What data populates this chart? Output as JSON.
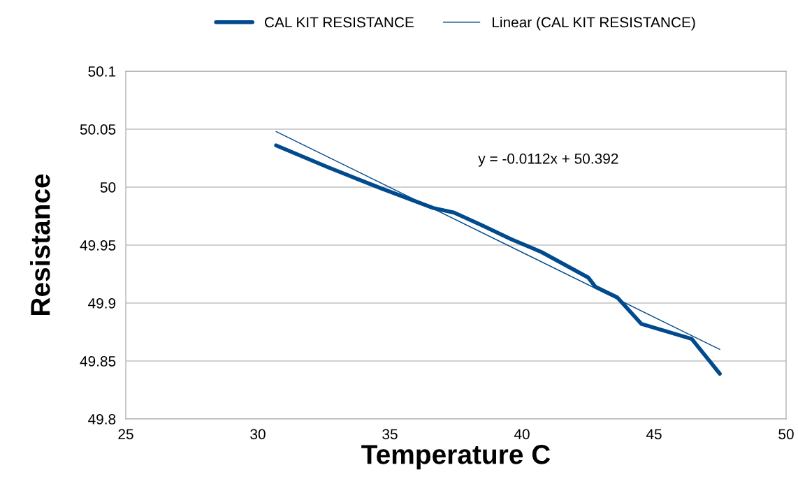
{
  "chart_data": {
    "type": "line",
    "xlabel": "Temperature C",
    "ylabel": "Resistance",
    "xlim": [
      25,
      50
    ],
    "xticks": [
      25,
      30,
      35,
      40,
      45,
      50
    ],
    "ylim": [
      49.8,
      50.1
    ],
    "yticks": [
      49.8,
      49.85,
      49.9,
      49.95,
      50,
      50.05,
      50.1
    ],
    "grid": "y",
    "legend": "top",
    "annotations": [
      "y = -0.0112x + 50.392"
    ],
    "series": [
      {
        "name": "CAL KIT RESISTANCE",
        "color": "#004a8d",
        "x": [
          30.69,
          32.67,
          34.66,
          36.64,
          37.43,
          38.49,
          39.6,
          40.74,
          42.51,
          42.78,
          43.6,
          44.52,
          46.43,
          47.49
        ],
        "values": [
          50.036,
          50.017,
          49.999,
          49.982,
          49.978,
          49.967,
          49.955,
          49.944,
          49.922,
          49.914,
          49.905,
          49.882,
          49.869,
          49.839
        ]
      },
      {
        "name": "Linear (CAL KIT RESISTANCE)",
        "color": "#004a8d",
        "type": "line",
        "x": [
          30.69,
          47.49
        ],
        "values": [
          50.048,
          49.86
        ]
      }
    ]
  }
}
